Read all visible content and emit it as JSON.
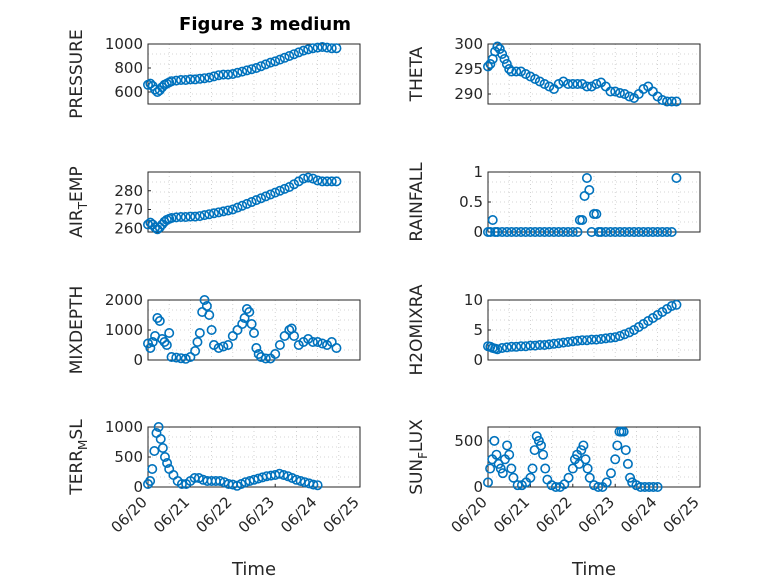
{
  "figure": {
    "title": "Figure 3 medium"
  },
  "chart_data": [
    {
      "type": "scatter",
      "ylabel": "PRESSURE",
      "xlabel": "",
      "ylim": [
        500,
        1000
      ],
      "yticks": [
        600,
        800,
        1000
      ],
      "yticklabels": [
        "600",
        "800",
        "1000"
      ],
      "xlim": [
        0,
        4.5
      ],
      "xticklabels": [],
      "x": [
        0,
        0.05,
        0.1,
        0.15,
        0.2,
        0.25,
        0.3,
        0.35,
        0.4,
        0.45,
        0.5,
        0.6,
        0.7,
        0.8,
        0.9,
        1.0,
        1.1,
        1.2,
        1.3,
        1.4,
        1.5,
        1.6,
        1.7,
        1.8,
        1.9,
        2.0,
        2.1,
        2.2,
        2.3,
        2.4,
        2.5,
        2.6,
        2.7,
        2.8,
        2.9,
        3.0,
        3.1,
        3.2,
        3.3,
        3.4,
        3.5,
        3.6,
        3.7,
        3.8,
        3.9,
        4.0
      ],
      "y": [
        660,
        670,
        650,
        620,
        600,
        615,
        640,
        660,
        670,
        680,
        690,
        695,
        700,
        700,
        705,
        705,
        710,
        715,
        720,
        730,
        740,
        745,
        745,
        750,
        760,
        770,
        780,
        790,
        800,
        815,
        830,
        845,
        855,
        870,
        885,
        900,
        915,
        930,
        945,
        955,
        965,
        970,
        975,
        970,
        965,
        965
      ]
    },
    {
      "type": "scatter",
      "ylabel": "THETA",
      "xlabel": "",
      "ylim": [
        288,
        300
      ],
      "yticks": [
        290,
        295,
        300
      ],
      "yticklabels": [
        "290",
        "295",
        "300"
      ],
      "xlim": [
        0,
        4.5
      ],
      "xticklabels": [],
      "x": [
        0,
        0.05,
        0.1,
        0.15,
        0.2,
        0.25,
        0.3,
        0.35,
        0.4,
        0.45,
        0.5,
        0.6,
        0.7,
        0.8,
        0.9,
        1.0,
        1.1,
        1.2,
        1.3,
        1.4,
        1.5,
        1.6,
        1.7,
        1.8,
        1.9,
        2.0,
        2.1,
        2.2,
        2.3,
        2.4,
        2.5,
        2.6,
        2.7,
        2.8,
        2.9,
        3.0,
        3.1,
        3.2,
        3.3,
        3.4,
        3.5,
        3.6,
        3.7,
        3.8,
        3.9,
        4.0
      ],
      "y": [
        295.5,
        296,
        297,
        298.5,
        299.5,
        299,
        298,
        297,
        296,
        295,
        294.5,
        294.5,
        294.5,
        294,
        293.5,
        293,
        292.5,
        292,
        291.5,
        291,
        292,
        292.5,
        292,
        292,
        292,
        292,
        291.5,
        291.5,
        292,
        292.3,
        291.5,
        290.5,
        290.5,
        290.2,
        290,
        289.5,
        289.2,
        290,
        291,
        291.5,
        290.5,
        289.5,
        288.8,
        288.5,
        288.5,
        288.5
      ]
    },
    {
      "type": "scatter",
      "ylabel": "AIR",
      "ylabel_sub": "T",
      "ylabel_rest": "EMP",
      "xlabel": "",
      "ylim": [
        258,
        290
      ],
      "yticks": [
        260,
        270,
        280
      ],
      "yticklabels": [
        "260",
        "270",
        "280"
      ],
      "xlim": [
        0,
        4.5
      ],
      "xticklabels": [],
      "x": [
        0,
        0.05,
        0.1,
        0.15,
        0.2,
        0.25,
        0.3,
        0.35,
        0.4,
        0.45,
        0.5,
        0.6,
        0.7,
        0.8,
        0.9,
        1.0,
        1.1,
        1.2,
        1.3,
        1.4,
        1.5,
        1.6,
        1.7,
        1.8,
        1.9,
        2.0,
        2.1,
        2.2,
        2.3,
        2.4,
        2.5,
        2.6,
        2.7,
        2.8,
        2.9,
        3.0,
        3.1,
        3.2,
        3.3,
        3.4,
        3.5,
        3.6,
        3.7,
        3.8,
        3.9,
        4.0
      ],
      "y": [
        262,
        263,
        262,
        260.5,
        259.5,
        260.5,
        262,
        263.5,
        264.5,
        265,
        265.5,
        265.8,
        266,
        266,
        266.2,
        266.2,
        266.5,
        267,
        267.5,
        268,
        268.5,
        269,
        269.5,
        270,
        271,
        272,
        273,
        274,
        275,
        276,
        277,
        278,
        279,
        280,
        281,
        282,
        283.5,
        285,
        286.5,
        287,
        286.5,
        285.5,
        285,
        285,
        285,
        285
      ]
    },
    {
      "type": "scatter",
      "ylabel": "RAINFALL",
      "xlabel": "",
      "ylim": [
        0,
        1
      ],
      "yticks": [
        0,
        0.5,
        1
      ],
      "yticklabels": [
        "0",
        "0.5",
        "1"
      ],
      "xlim": [
        0,
        4.5
      ],
      "xticklabels": [],
      "x": [
        0,
        0.05,
        0.1,
        0.15,
        0.2,
        0.3,
        0.4,
        0.5,
        0.6,
        0.7,
        0.8,
        0.9,
        1.0,
        1.1,
        1.2,
        1.3,
        1.4,
        1.5,
        1.6,
        1.7,
        1.8,
        1.9,
        1.95,
        2.0,
        2.05,
        2.1,
        2.15,
        2.2,
        2.25,
        2.3,
        2.35,
        2.4,
        2.5,
        2.6,
        2.7,
        2.8,
        2.9,
        3.0,
        3.1,
        3.2,
        3.3,
        3.4,
        3.5,
        3.6,
        3.7,
        3.8,
        3.9,
        4.0
      ],
      "y": [
        0,
        0,
        0.2,
        0,
        0,
        0,
        0,
        0,
        0,
        0,
        0,
        0,
        0,
        0,
        0,
        0,
        0,
        0,
        0,
        0,
        0,
        0,
        0.2,
        0.2,
        0.6,
        0.9,
        0.7,
        0,
        0.3,
        0.3,
        0,
        0,
        0,
        0,
        0,
        0,
        0,
        0,
        0,
        0,
        0,
        0,
        0,
        0,
        0,
        0,
        0,
        0.9
      ]
    },
    {
      "type": "scatter",
      "ylabel": "MIXDEPTH",
      "xlabel": "",
      "ylim": [
        0,
        2000
      ],
      "yticks": [
        0,
        1000,
        2000
      ],
      "yticklabels": [
        "0",
        "1000",
        "2000"
      ],
      "xlim": [
        0,
        4.5
      ],
      "xticklabels": [],
      "x": [
        0,
        0.05,
        0.1,
        0.15,
        0.2,
        0.25,
        0.3,
        0.35,
        0.4,
        0.45,
        0.5,
        0.6,
        0.7,
        0.8,
        0.9,
        1.0,
        1.05,
        1.1,
        1.15,
        1.2,
        1.25,
        1.3,
        1.35,
        1.4,
        1.5,
        1.6,
        1.7,
        1.8,
        1.9,
        2.0,
        2.05,
        2.1,
        2.15,
        2.2,
        2.25,
        2.3,
        2.35,
        2.4,
        2.5,
        2.6,
        2.7,
        2.8,
        2.9,
        3.0,
        3.05,
        3.1,
        3.2,
        3.3,
        3.4,
        3.5,
        3.6,
        3.7,
        3.8,
        3.9,
        4.0
      ],
      "y": [
        550,
        400,
        600,
        800,
        1400,
        1300,
        700,
        600,
        500,
        900,
        100,
        80,
        60,
        40,
        100,
        300,
        600,
        900,
        1600,
        2000,
        1800,
        1500,
        1000,
        500,
        400,
        450,
        500,
        800,
        1000,
        1200,
        1400,
        1700,
        1600,
        1200,
        900,
        400,
        200,
        100,
        50,
        50,
        200,
        500,
        800,
        1000,
        1050,
        800,
        500,
        600,
        700,
        600,
        600,
        550,
        500,
        600,
        400
      ]
    },
    {
      "type": "scatter",
      "ylabel": "H2OMIXRA",
      "xlabel": "",
      "ylim": [
        0,
        10
      ],
      "yticks": [
        0,
        5,
        10
      ],
      "yticklabels": [
        "0",
        "5",
        "10"
      ],
      "xlim": [
        0,
        4.5
      ],
      "xticklabels": [],
      "x": [
        0,
        0.05,
        0.1,
        0.15,
        0.2,
        0.3,
        0.4,
        0.5,
        0.6,
        0.7,
        0.8,
        0.9,
        1.0,
        1.1,
        1.2,
        1.3,
        1.4,
        1.5,
        1.6,
        1.7,
        1.8,
        1.9,
        2.0,
        2.1,
        2.2,
        2.3,
        2.4,
        2.5,
        2.6,
        2.7,
        2.8,
        2.9,
        3.0,
        3.1,
        3.2,
        3.3,
        3.4,
        3.5,
        3.6,
        3.7,
        3.8,
        3.9,
        4.0
      ],
      "y": [
        2.3,
        2.2,
        2.0,
        1.9,
        1.8,
        2.0,
        2.1,
        2.2,
        2.2,
        2.3,
        2.3,
        2.4,
        2.4,
        2.5,
        2.5,
        2.6,
        2.7,
        2.8,
        2.9,
        3.0,
        3.1,
        3.2,
        3.3,
        3.3,
        3.4,
        3.4,
        3.5,
        3.6,
        3.7,
        3.8,
        4.0,
        4.3,
        4.6,
        5.0,
        5.5,
        6.0,
        6.5,
        7.0,
        7.5,
        8.0,
        8.5,
        9.0,
        9.2
      ]
    },
    {
      "type": "scatter",
      "ylabel": "TERR",
      "ylabel_sub": "M",
      "ylabel_rest": "SL",
      "xlabel": "Time",
      "ylim": [
        0,
        1000
      ],
      "yticks": [
        0,
        500,
        1000
      ],
      "yticklabels": [
        "0",
        "500",
        "1000"
      ],
      "xlim": [
        0,
        5
      ],
      "xticks": [
        0,
        1,
        2,
        3,
        4,
        5
      ],
      "xticklabels": [
        "06/20",
        "06/21",
        "06/22",
        "06/23",
        "06/24",
        "06/25"
      ],
      "x": [
        0,
        0.05,
        0.1,
        0.15,
        0.2,
        0.25,
        0.3,
        0.35,
        0.4,
        0.45,
        0.5,
        0.6,
        0.7,
        0.8,
        0.9,
        1.0,
        1.1,
        1.2,
        1.3,
        1.4,
        1.5,
        1.6,
        1.7,
        1.8,
        1.9,
        2.0,
        2.1,
        2.2,
        2.3,
        2.4,
        2.5,
        2.6,
        2.7,
        2.8,
        2.9,
        3.0,
        3.1,
        3.2,
        3.3,
        3.4,
        3.5,
        3.6,
        3.7,
        3.8,
        3.9,
        4.0
      ],
      "y": [
        50,
        100,
        300,
        600,
        900,
        1000,
        800,
        650,
        500,
        400,
        300,
        200,
        100,
        50,
        50,
        100,
        150,
        150,
        120,
        100,
        100,
        100,
        100,
        80,
        50,
        40,
        20,
        50,
        80,
        100,
        120,
        140,
        160,
        180,
        190,
        200,
        220,
        200,
        180,
        150,
        120,
        100,
        80,
        60,
        40,
        30
      ]
    },
    {
      "type": "scatter",
      "ylabel": "SUN",
      "ylabel_sub": "F",
      "ylabel_rest": "LUX",
      "xlabel": "Time",
      "ylim": [
        0,
        650
      ],
      "yticks": [
        0,
        500
      ],
      "yticklabels": [
        "0",
        "500"
      ],
      "xlim": [
        0,
        5
      ],
      "xticks": [
        0,
        1,
        2,
        3,
        4,
        5
      ],
      "xticklabels": [
        "06/20",
        "06/21",
        "06/22",
        "06/23",
        "06/24",
        "06/25"
      ],
      "x": [
        0,
        0.05,
        0.1,
        0.15,
        0.2,
        0.25,
        0.3,
        0.35,
        0.4,
        0.45,
        0.5,
        0.55,
        0.6,
        0.7,
        0.8,
        0.9,
        1.0,
        1.05,
        1.1,
        1.15,
        1.2,
        1.25,
        1.3,
        1.35,
        1.4,
        1.5,
        1.6,
        1.7,
        1.8,
        1.9,
        2.0,
        2.05,
        2.1,
        2.15,
        2.2,
        2.25,
        2.3,
        2.35,
        2.4,
        2.5,
        2.6,
        2.7,
        2.8,
        2.9,
        3.0,
        3.05,
        3.1,
        3.15,
        3.2,
        3.25,
        3.3,
        3.35,
        3.4,
        3.5,
        3.6,
        3.7,
        3.8,
        3.9,
        4.0
      ],
      "y": [
        50,
        200,
        300,
        500,
        350,
        250,
        200,
        150,
        300,
        450,
        350,
        200,
        100,
        20,
        20,
        50,
        100,
        200,
        400,
        550,
        500,
        450,
        350,
        200,
        80,
        20,
        0,
        0,
        30,
        100,
        200,
        300,
        350,
        250,
        400,
        450,
        300,
        200,
        100,
        20,
        0,
        0,
        50,
        150,
        300,
        450,
        600,
        600,
        600,
        400,
        250,
        100,
        50,
        20,
        0,
        0,
        0,
        0,
        0
      ]
    }
  ]
}
